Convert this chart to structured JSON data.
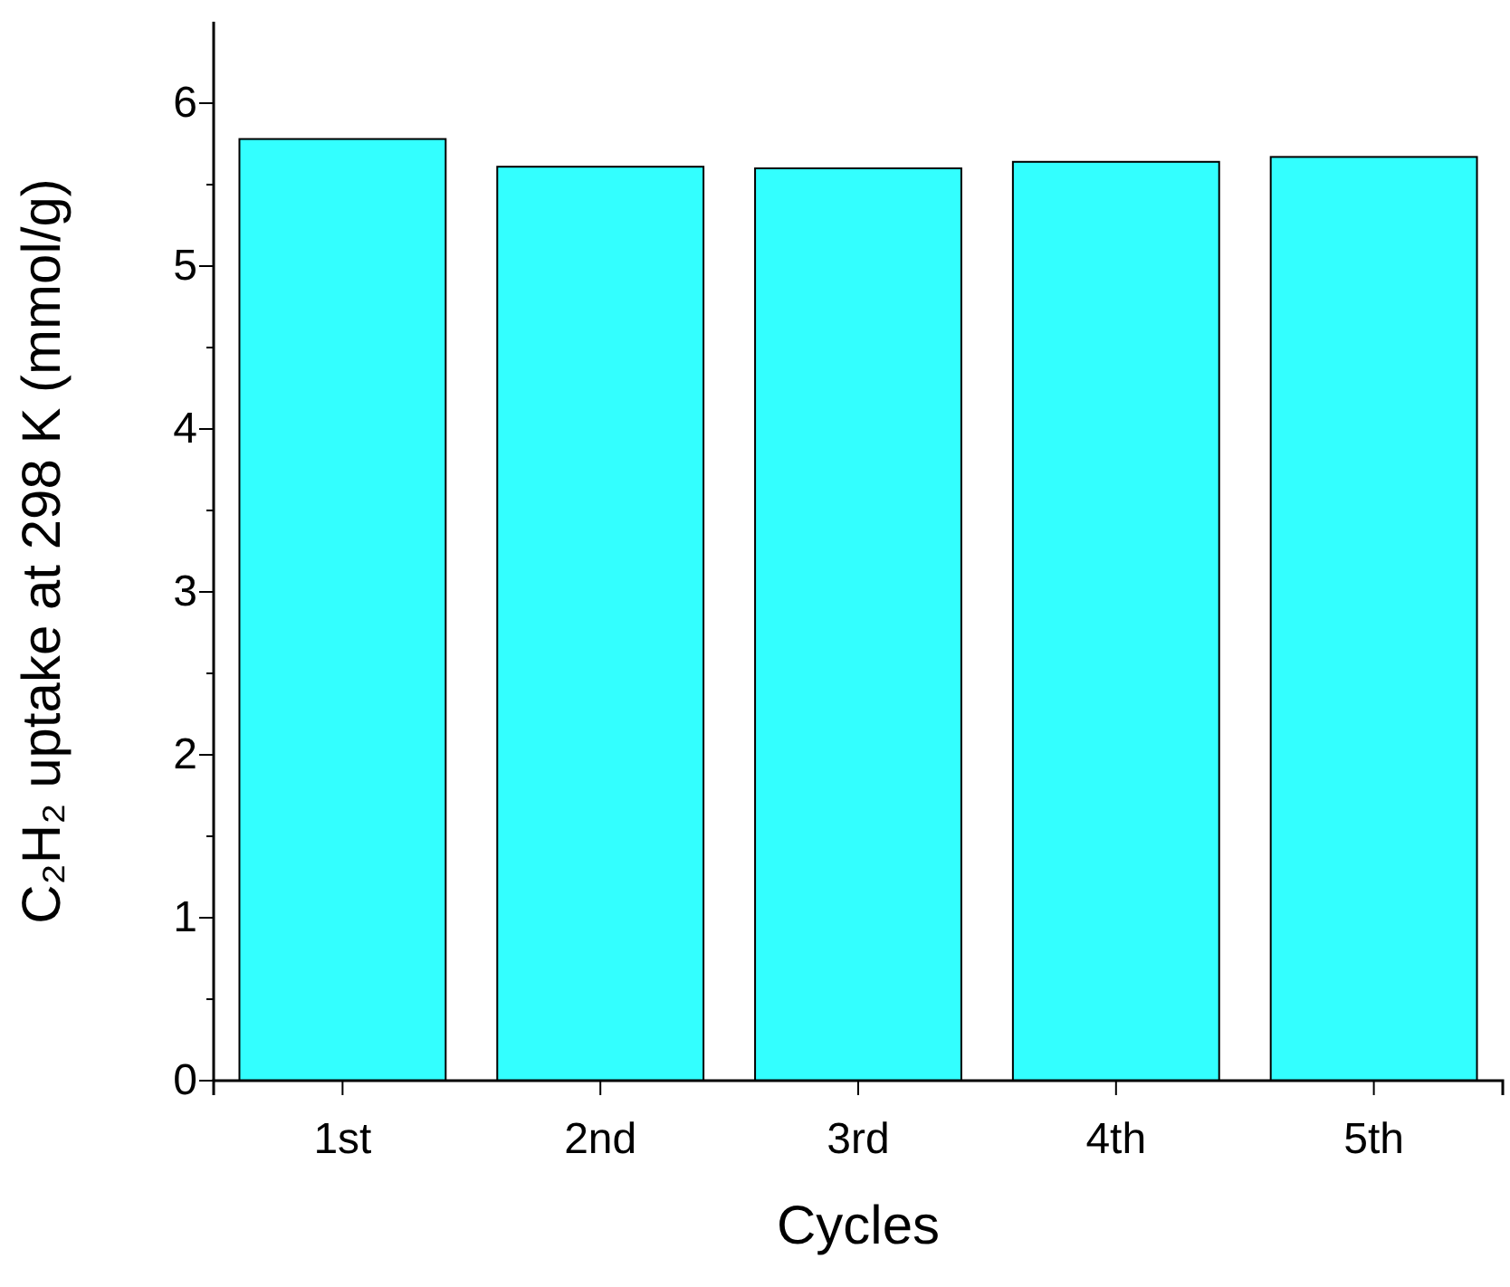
{
  "chart_data": {
    "type": "bar",
    "xlabel": "Cycles",
    "ylabel": "C₂H₂ uptake at 298 K (mmol/g)",
    "categories": [
      "1st",
      "2nd",
      "3rd",
      "4th",
      "5th"
    ],
    "values": [
      5.78,
      5.61,
      5.6,
      5.64,
      5.67
    ],
    "color": "#33ffff",
    "ylim": [
      0,
      6.5
    ],
    "yticks": [
      0,
      {
        "value": 0.5,
        "label": null
      },
      1,
      {
        "value": 1.5,
        "label": null
      },
      2,
      {
        "value": 2.5,
        "label": null
      },
      3,
      {
        "value": 3.5,
        "label": null
      },
      4,
      {
        "value": 4.5,
        "label": null
      },
      5,
      {
        "value": 5.5,
        "label": null
      },
      6
    ],
    "grid": false
  }
}
